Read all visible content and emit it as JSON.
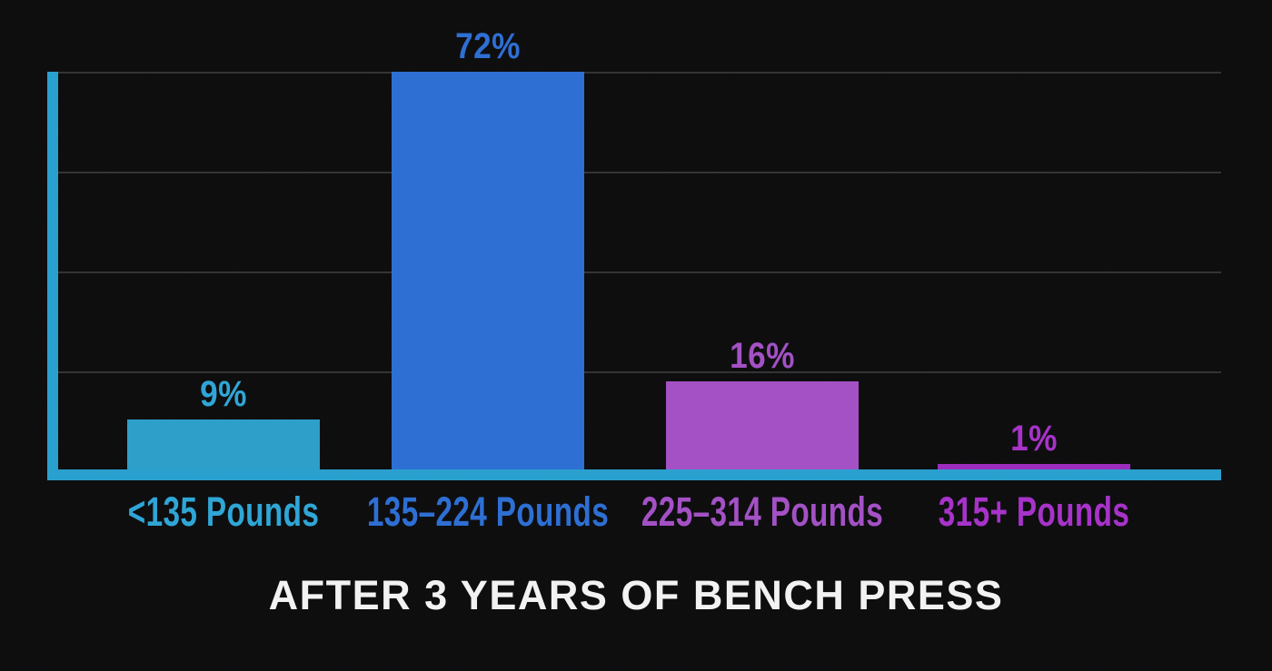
{
  "chart_data": {
    "type": "bar",
    "title": "AFTER 3 YEARS OF BENCH PRESS",
    "xlabel": "",
    "ylabel": "",
    "ylim": [
      0,
      72
    ],
    "grid": "horizontal-gridlines",
    "legend": "none",
    "categories": [
      "<135 Pounds",
      "135–224 Pounds",
      "225–314 Pounds",
      "315+ Pounds"
    ],
    "values": [
      9,
      72,
      16,
      1
    ],
    "bars": [
      {
        "category": "<135 Pounds",
        "value": 9,
        "pct_label": "9%",
        "color": "#2d9fc9",
        "label_color": "#2fa6d6"
      },
      {
        "category": "135–224 Pounds",
        "value": 72,
        "pct_label": "72%",
        "color": "#2e6fd4",
        "label_color": "#2e6fd4"
      },
      {
        "category": "225–314 Pounds",
        "value": 16,
        "pct_label": "16%",
        "color": "#a351c5",
        "label_color": "#a351c5"
      },
      {
        "category": "315+ Pounds",
        "value": 1,
        "pct_label": "1%",
        "color": "#9d2dbd",
        "label_color": "#a733c9"
      }
    ],
    "axis_color": "#2aa0ce",
    "gridline_color": "#343434",
    "background_color": "#0c0c0d",
    "title_color": "#f2f2f2"
  }
}
